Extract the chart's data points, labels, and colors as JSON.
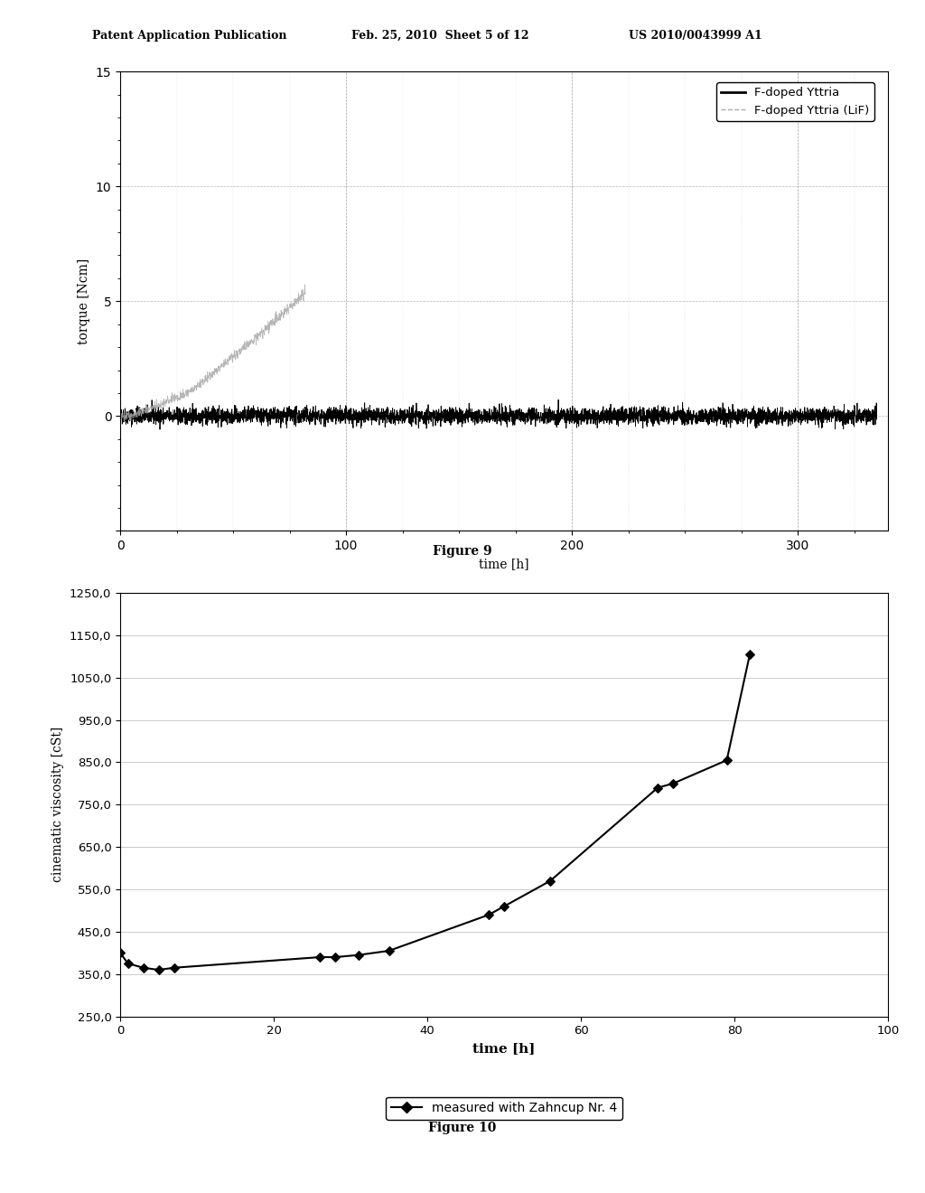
{
  "fig1": {
    "title": "Figure 9",
    "xlabel": "time [h]",
    "ylabel": "torque [Ncm]",
    "xlim": [
      0,
      340
    ],
    "ylim": [
      -5,
      15
    ],
    "yticks": [
      -5,
      0,
      5,
      10,
      15
    ],
    "xticks": [
      0,
      100,
      200,
      300
    ],
    "legend": [
      "F-doped Yttria",
      "F-doped Yttria (LiF)"
    ],
    "line1_color": "#000000",
    "line2_color": "#aaaaaa"
  },
  "fig2": {
    "title": "Figure 10",
    "xlabel": "time [h]",
    "ylabel": "cinematic viscosity [cSt]",
    "xlim": [
      0,
      100
    ],
    "ylim": [
      250,
      1250
    ],
    "yticks": [
      250,
      350,
      450,
      550,
      650,
      750,
      850,
      950,
      1050,
      1150,
      1250
    ],
    "xticks": [
      0,
      20,
      40,
      60,
      80,
      100
    ],
    "legend": "measured with Zahncup Nr. 4",
    "line_color": "#000000",
    "marker": "D",
    "data_x": [
      0,
      1,
      3,
      5,
      7,
      26,
      28,
      31,
      35,
      48,
      50,
      56,
      70,
      72,
      79,
      82
    ],
    "data_y": [
      400,
      375,
      365,
      360,
      365,
      390,
      390,
      395,
      405,
      490,
      510,
      570,
      790,
      800,
      855,
      1105
    ]
  },
  "header": {
    "left": "Patent Application Publication",
    "center": "Feb. 25, 2010  Sheet 5 of 12",
    "right": "US 2010/0043999 A1"
  }
}
